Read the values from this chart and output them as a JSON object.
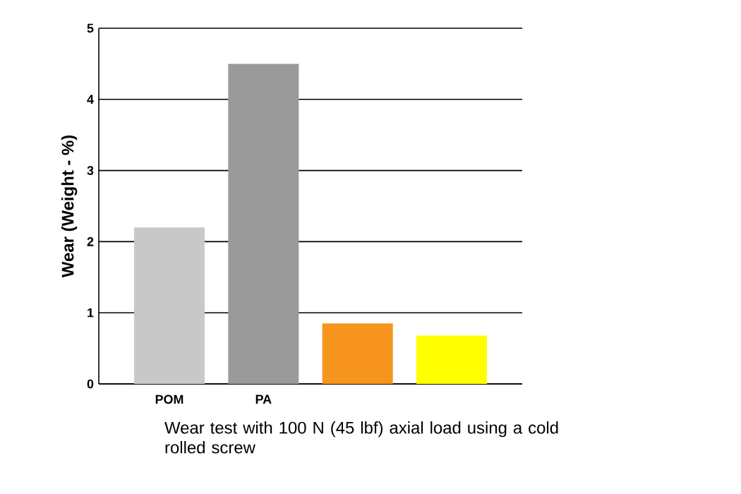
{
  "chart_data": {
    "type": "bar",
    "ylabel": "Wear (Weight - %)",
    "categories": [
      "POM",
      "PA",
      null,
      null
    ],
    "values": [
      2.2,
      4.5,
      0.85,
      0.68
    ],
    "colors": [
      "#c8c8c8",
      "#9a9a9a",
      "#f7941d",
      "#ffff00"
    ],
    "ylim": [
      0,
      5
    ],
    "yticks": [
      0,
      1,
      2,
      3,
      4,
      5
    ],
    "grid": "y",
    "annotations": [
      "Wear test with 100 N (45 lbf) axial load using a cold rolled screw"
    ]
  }
}
